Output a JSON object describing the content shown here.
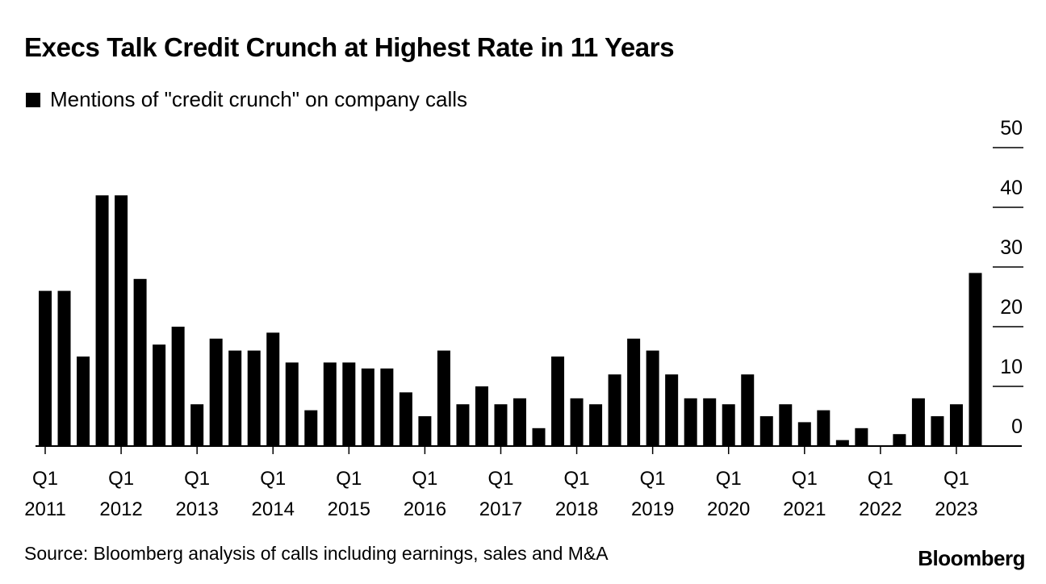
{
  "chart_data": {
    "type": "bar",
    "title": "Execs Talk Credit Crunch at Highest Rate in 11 Years",
    "legend": {
      "position": "top-left",
      "entries": [
        "Mentions of \"credit crunch\" on company calls"
      ]
    },
    "series": [
      {
        "name": "Mentions of \"credit crunch\" on company calls",
        "color": "#000000",
        "values": [
          26,
          26,
          15,
          42,
          42,
          28,
          17,
          20,
          7,
          18,
          16,
          16,
          19,
          14,
          6,
          14,
          14,
          13,
          13,
          9,
          5,
          16,
          7,
          10,
          7,
          8,
          3,
          15,
          8,
          7,
          12,
          18,
          16,
          12,
          8,
          8,
          7,
          12,
          5,
          7,
          4,
          6,
          1,
          3,
          0,
          2,
          8,
          5,
          7,
          29
        ]
      }
    ],
    "x_tick_labels": [
      {
        "index": 0,
        "top": "Q1",
        "bottom": "2011"
      },
      {
        "index": 4,
        "top": "Q1",
        "bottom": "2012"
      },
      {
        "index": 8,
        "top": "Q1",
        "bottom": "2013"
      },
      {
        "index": 12,
        "top": "Q1",
        "bottom": "2014"
      },
      {
        "index": 16,
        "top": "Q1",
        "bottom": "2015"
      },
      {
        "index": 20,
        "top": "Q1",
        "bottom": "2016"
      },
      {
        "index": 24,
        "top": "Q1",
        "bottom": "2017"
      },
      {
        "index": 28,
        "top": "Q1",
        "bottom": "2018"
      },
      {
        "index": 32,
        "top": "Q1",
        "bottom": "2019"
      },
      {
        "index": 36,
        "top": "Q1",
        "bottom": "2020"
      },
      {
        "index": 40,
        "top": "Q1",
        "bottom": "2021"
      },
      {
        "index": 44,
        "top": "Q1",
        "bottom": "2022"
      },
      {
        "index": 48,
        "top": "Q1",
        "bottom": "2023"
      }
    ],
    "y_ticks": [
      0,
      10,
      20,
      30,
      40,
      50
    ],
    "ylim": [
      0,
      50
    ],
    "y_axis_side": "right",
    "grid": false,
    "xlabel": "",
    "ylabel": ""
  },
  "source": "Source: Bloomberg analysis of calls including earnings, sales and M&A",
  "brand": "Bloomberg"
}
